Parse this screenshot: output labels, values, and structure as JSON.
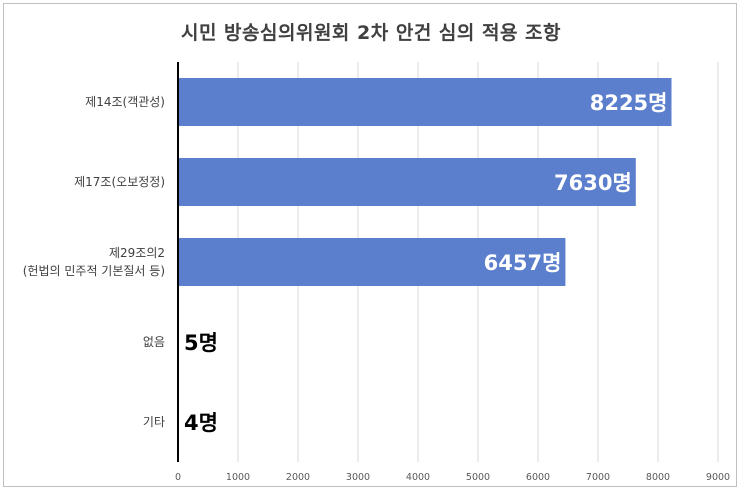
{
  "chart_data": {
    "type": "bar",
    "orientation": "horizontal",
    "title": "시민 방송심의위원회 2차 안건 심의 적용 조항",
    "categories": [
      [
        "제14조(객관성)"
      ],
      [
        "제17조(오보정정)"
      ],
      [
        "제29조의2",
        "(헌법의 민주적 기본질서 등)"
      ],
      [
        "없음"
      ],
      [
        "기타"
      ]
    ],
    "values": [
      8225,
      7630,
      6457,
      5,
      4
    ],
    "data_labels": [
      "8225명",
      "7630명",
      "6457명",
      "5명",
      "4명"
    ],
    "xlim": [
      0,
      9000
    ],
    "x_ticks": [
      "0",
      "1000",
      "2000",
      "3000",
      "4000",
      "5000",
      "6000",
      "7000",
      "8000",
      "9000"
    ],
    "grid": "vertical",
    "legend": "none",
    "bar_color": "#5b7fcd",
    "gridline_color": "#d9d9d9"
  }
}
